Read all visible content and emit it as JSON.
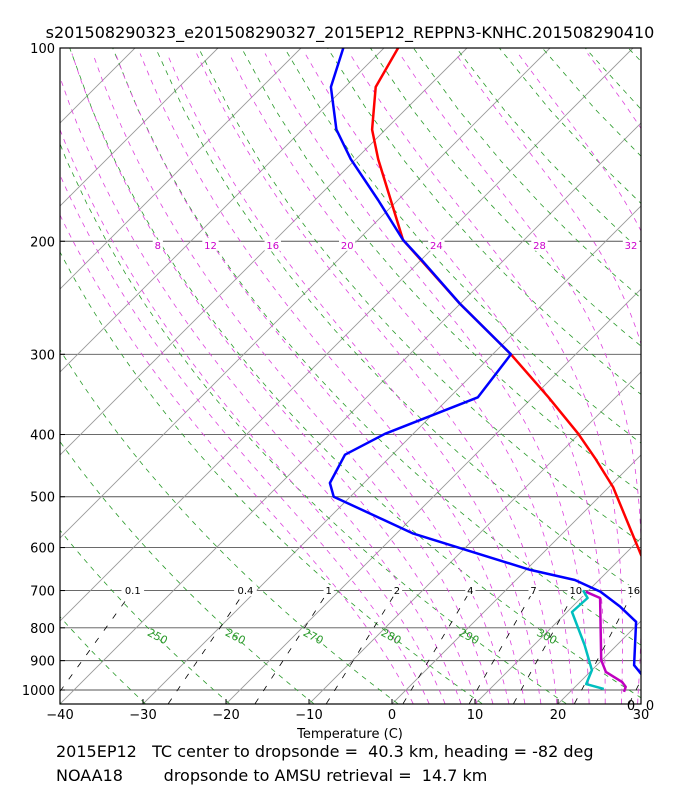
{
  "title": "s201508290323_e201508290327_2015EP12_REPPN3-KNHC.201508290410",
  "footer": {
    "line1": "2015EP12   TC center to dropsonde =  40.3 km, heading = -82 deg",
    "line2": "NOAA18        dropsonde to AMSU retrieval =  14.7 km"
  },
  "chart_data": {
    "type": "line",
    "subtype": "skew-T log-p",
    "xlabel": "Temperature (C)",
    "ylabel": "",
    "xlim": [
      -40,
      30
    ],
    "ylim": [
      1050,
      100
    ],
    "x_ticks": [
      "−40",
      "−30",
      "−20",
      "−10",
      "0",
      "10",
      "20",
      "30"
    ],
    "x_tick_values": [
      -40,
      -30,
      -20,
      -10,
      0,
      10,
      20,
      30
    ],
    "y_ticks": [
      100,
      200,
      300,
      400,
      500,
      600,
      700,
      800,
      900,
      1000
    ],
    "corner_labels": [
      "0",
      "0"
    ],
    "colors": {
      "temperature": "#ff0000",
      "retrieval": "#0000ff",
      "dewpoint_a": "#bf00bf",
      "dewpoint_b": "#00bfbf",
      "isotherm": "#999999",
      "dry_adiabat": "#2a9a2a",
      "moist_adiabat": "#dd44dd",
      "mixing_ratio": "#000000"
    },
    "series": [
      {
        "name": "temperature",
        "color": "#ff0000",
        "p": [
          100,
          115,
          134,
          149,
          199,
          250,
          300,
          350,
          399,
          435,
          483,
          618
        ],
        "t": [
          -78.3,
          -76.3,
          -71.6,
          -67.3,
          -54.6,
          -40.1,
          -27.8,
          -18.1,
          -10.1,
          -5.2,
          0.5,
          12.2
        ]
      },
      {
        "name": "retrieval",
        "color": "#0000ff",
        "p": [
          100,
          115,
          134,
          149,
          172.5,
          199,
          214,
          250,
          300,
          350,
          399,
          430,
          476,
          500,
          570,
          650,
          674,
          703,
          742,
          783,
          915,
          944,
          1000
        ],
        "t": [
          -84.9,
          -81.7,
          -75.9,
          -70.6,
          -62.4,
          -54.6,
          -49.9,
          -40.1,
          -27.8,
          -26.6,
          -33.4,
          -35.7,
          -34.1,
          -32.0,
          -18.1,
          0.5,
          7.1,
          11.6,
          15.8,
          19.5,
          24.5,
          26.4,
          30
        ]
      },
      {
        "name": "dewpoint_a",
        "color": "#bf00bf",
        "p": [
          703,
          719,
          898,
          937,
          972,
          989,
          1007
        ],
        "t": [
          9.8,
          12.3,
          19.9,
          21.9,
          25.1,
          26.1,
          26.5
        ]
      },
      {
        "name": "dewpoint_b",
        "color": "#00bfbf",
        "p": [
          699,
          719,
          756,
          851,
          931,
          979,
          996
        ],
        "t": [
          9.3,
          10.8,
          10.6,
          16.1,
          20.0,
          21.0,
          23.7
        ]
      }
    ],
    "dry_adiabat_labels": [
      "250",
      "260",
      "270",
      "280",
      "290",
      "300"
    ],
    "dry_adiabat_label_values": [
      250,
      260,
      270,
      280,
      290,
      300
    ],
    "dry_adiabat_label_pressure": 800,
    "moist_adiabat_labels": [
      "8",
      "12",
      "16",
      "20",
      "24",
      "28",
      "32"
    ],
    "moist_adiabat_label_values": [
      8,
      12,
      16,
      20,
      24,
      28,
      32
    ],
    "moist_adiabat_label_pressure": 200,
    "mixing_ratio_labels": [
      "0.1",
      "0.4",
      "1",
      "2",
      "4",
      "7",
      "10",
      "16"
    ],
    "mixing_ratio_label_values": [
      0.1,
      0.4,
      1,
      2,
      4,
      7,
      10,
      16
    ],
    "mixing_ratio_label_pressure": 700
  }
}
